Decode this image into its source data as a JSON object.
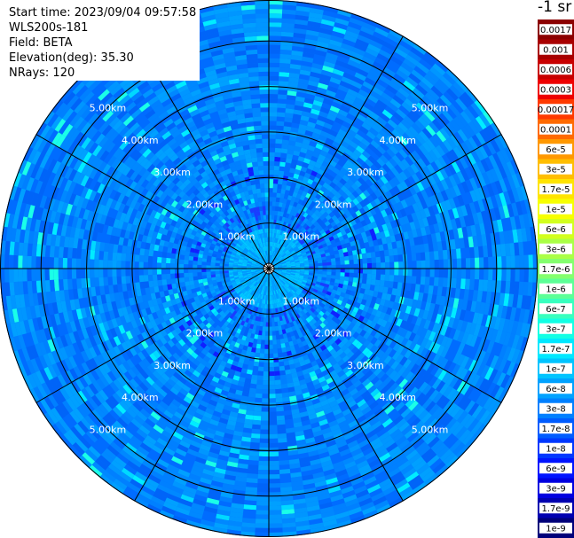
{
  "info": {
    "start_time": "Start time: 2023/09/04 09:57:58",
    "instrument": "WLS200s-181",
    "field": "Field: BETA",
    "elevation": "Elevation(deg): 35.30",
    "nrays": "NRays: 120"
  },
  "colorbar": {
    "title": "-1 sr",
    "entries": [
      {
        "label": "0.0017",
        "color": "#8b0000"
      },
      {
        "label": "0.001",
        "color": "#a80000"
      },
      {
        "label": "0.0006",
        "color": "#c80000"
      },
      {
        "label": "0.0003",
        "color": "#ee0000"
      },
      {
        "label": "0.00017",
        "color": "#ff3a00"
      },
      {
        "label": "0.0001",
        "color": "#ff6a00"
      },
      {
        "label": "6e-5",
        "color": "#ff9800"
      },
      {
        "label": "3e-5",
        "color": "#ffbe00"
      },
      {
        "label": "1.7e-5",
        "color": "#ffe400"
      },
      {
        "label": "1e-5",
        "color": "#f7ff00"
      },
      {
        "label": "6e-6",
        "color": "#d2ff1e"
      },
      {
        "label": "3e-6",
        "color": "#aaff46"
      },
      {
        "label": "1.7e-6",
        "color": "#84ff6e"
      },
      {
        "label": "1e-6",
        "color": "#5cff96"
      },
      {
        "label": "6e-7",
        "color": "#38ffbe"
      },
      {
        "label": "3e-7",
        "color": "#12ffe4"
      },
      {
        "label": "1.7e-7",
        "color": "#00e8ff"
      },
      {
        "label": "1e-7",
        "color": "#00c4ff"
      },
      {
        "label": "6e-8",
        "color": "#00a2ff"
      },
      {
        "label": "3e-8",
        "color": "#0080ff"
      },
      {
        "label": "1.7e-8",
        "color": "#005cff"
      },
      {
        "label": "1e-8",
        "color": "#0038ff"
      },
      {
        "label": "6e-9",
        "color": "#0014ff"
      },
      {
        "label": "3e-9",
        "color": "#0000e0"
      },
      {
        "label": "1.7e-9",
        "color": "#0000b0"
      },
      {
        "label": "1e-9",
        "color": "#00007a"
      }
    ]
  },
  "chart_data": {
    "type": "heatmap",
    "projection": "polar-ppi",
    "title": "",
    "range_rings_km": [
      1,
      2,
      3,
      4,
      5
    ],
    "range_ring_labels": [
      "1.00km",
      "2.00km",
      "3.00km",
      "4.00km",
      "5.00km"
    ],
    "max_range_km": 5.9,
    "radial_spoke_angles_deg": [
      0,
      30,
      60,
      90,
      120,
      150,
      180,
      210,
      240,
      270,
      300,
      330
    ],
    "nrays": 120,
    "field": "BETA",
    "value_range": [
      1e-09,
      0.0017
    ],
    "dominant_values": {
      "0_to_0.9km": 1e-07,
      "0.9_to_1.4km": 3e-08,
      "1.4_to_5.9km": 1.7e-08
    }
  }
}
